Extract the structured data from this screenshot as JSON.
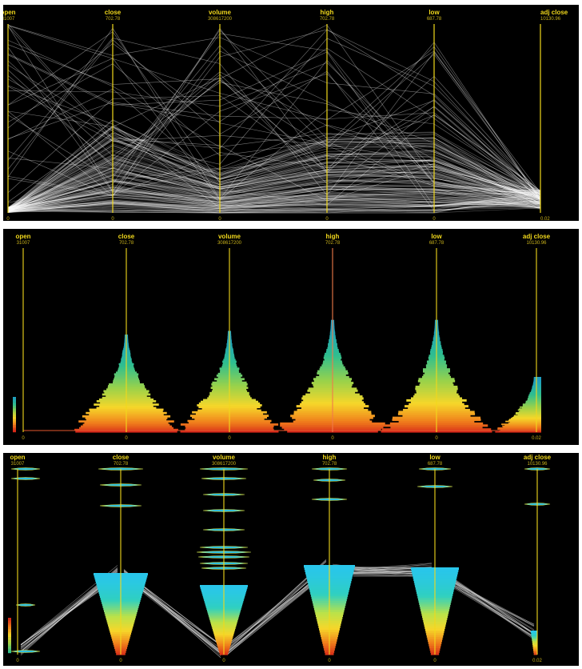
{
  "chart_data": [
    {
      "type": "parallel-coordinates",
      "view": "polylines",
      "axes": [
        {
          "name": "open",
          "max": "31007",
          "min": "0"
        },
        {
          "name": "close",
          "max": "702.78",
          "min": "0"
        },
        {
          "name": "volume",
          "max": "308617200",
          "min": "0"
        },
        {
          "name": "high",
          "max": "702.78",
          "min": "0"
        },
        {
          "name": "low",
          "max": "687.78",
          "min": "0"
        },
        {
          "name": "adj close",
          "max": "10130.96",
          "min": "0.02"
        }
      ],
      "line_color": "#ffffff",
      "axis_color": "#f1d81c"
    },
    {
      "type": "parallel-coordinates",
      "view": "density-histograms",
      "axes": [
        {
          "name": "open",
          "max": "31007",
          "min": "0"
        },
        {
          "name": "close",
          "max": "702.78",
          "min": "0"
        },
        {
          "name": "volume",
          "max": "308617200",
          "min": "0"
        },
        {
          "name": "high",
          "max": "702.78",
          "min": "0"
        },
        {
          "name": "low",
          "max": "687.78",
          "min": "0"
        },
        {
          "name": "adj close",
          "max": "10130.96",
          "min": "0.02"
        }
      ],
      "colormap": [
        "#d62718",
        "#f0801c",
        "#f6d72a",
        "#9ad24a",
        "#2fbf8f",
        "#1f9fc0"
      ],
      "axis_color": "#f1d81c"
    },
    {
      "type": "parallel-coordinates",
      "view": "clustered-bundles",
      "axes": [
        {
          "name": "open",
          "max": "31007",
          "min": "0"
        },
        {
          "name": "close",
          "max": "702.78",
          "min": "0"
        },
        {
          "name": "volume",
          "max": "308617200",
          "min": "0"
        },
        {
          "name": "high",
          "max": "702.78",
          "min": "0"
        },
        {
          "name": "low",
          "max": "687.78",
          "min": "0"
        },
        {
          "name": "adj close",
          "max": "10130.96",
          "min": "0.02"
        }
      ],
      "colormap": [
        "#29c6ea",
        "#2fd0c0",
        "#b9e24a",
        "#f6d72a",
        "#f0801c",
        "#d62718"
      ],
      "axis_color": "#f1d81c"
    }
  ]
}
